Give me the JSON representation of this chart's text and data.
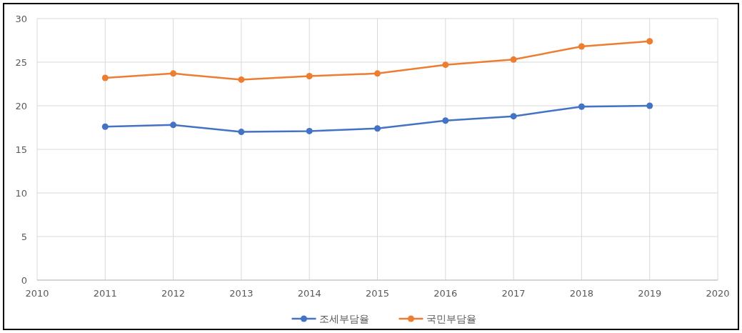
{
  "chart_data": {
    "type": "line",
    "x": [
      2011,
      2012,
      2013,
      2014,
      2015,
      2016,
      2017,
      2018,
      2019
    ],
    "series": [
      {
        "name": "조세부담율",
        "color": "#4472c4",
        "values": [
          17.6,
          17.8,
          17.0,
          17.1,
          17.4,
          18.3,
          18.8,
          19.9,
          20.0
        ]
      },
      {
        "name": "국민부담율",
        "color": "#ed7d31",
        "values": [
          23.2,
          23.7,
          23.0,
          23.4,
          23.7,
          24.7,
          25.3,
          26.8,
          27.4
        ]
      }
    ],
    "xlim": [
      2010,
      2020
    ],
    "xticks": [
      2010,
      2011,
      2012,
      2013,
      2014,
      2015,
      2016,
      2017,
      2018,
      2019,
      2020
    ],
    "ylim": [
      0,
      30
    ],
    "yticks": [
      0,
      5,
      10,
      15,
      20,
      25,
      30
    ],
    "grid": true,
    "legend": "bottom",
    "marker": "circle",
    "line_style": "solid"
  }
}
